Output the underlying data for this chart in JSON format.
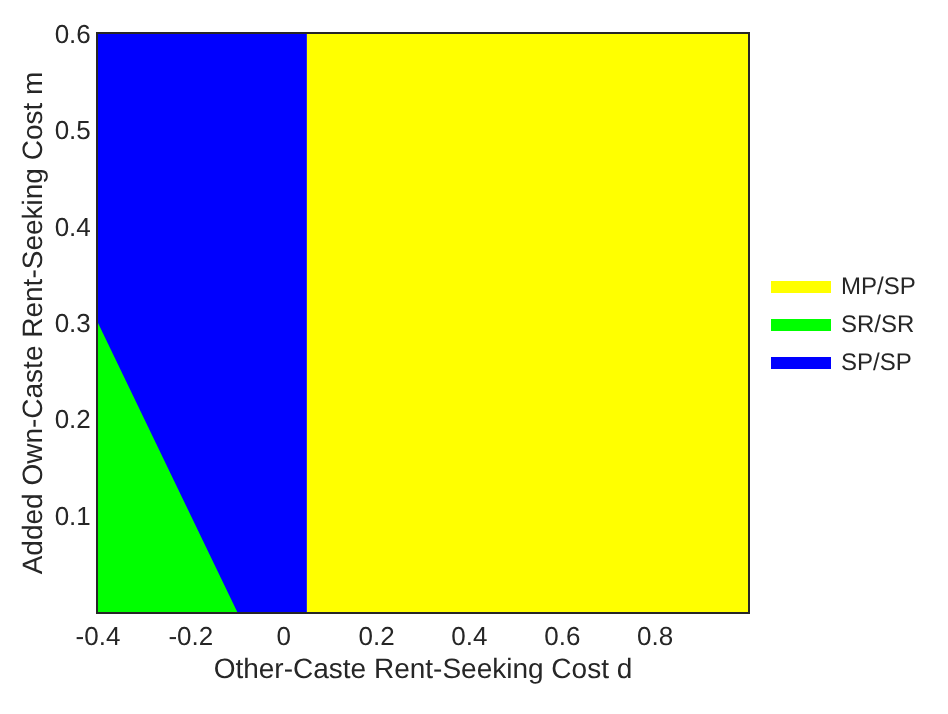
{
  "chart_data": {
    "type": "area",
    "xlabel": "Other-Caste Rent-Seeking Cost d",
    "ylabel": "Added Own-Caste Rent-Seeking Cost m",
    "series": [
      {
        "name": "SP/SP",
        "color": "#0000ff",
        "x": [
          -0.4,
          0.05
        ],
        "values": [
          0.6,
          0.6
        ]
      },
      {
        "name": "SR/SR",
        "color": "#00ff00",
        "x": [
          -0.4,
          -0.1
        ],
        "values": [
          0.3,
          0
        ]
      },
      {
        "name": "MP/SP",
        "color": "#ffff00",
        "x": [
          0.05,
          1.0
        ],
        "values": [
          0.6,
          0.6
        ]
      }
    ],
    "xlim": [
      -0.4,
      1.0
    ],
    "xticks": [
      -0.4,
      -0.2,
      0,
      0.2,
      0.4,
      0.6,
      0.8
    ],
    "ylim": [
      0,
      0.6
    ],
    "yticks": [
      0.1,
      0.2,
      0.3,
      0.4,
      0.5,
      0.6
    ],
    "legend": "right"
  }
}
